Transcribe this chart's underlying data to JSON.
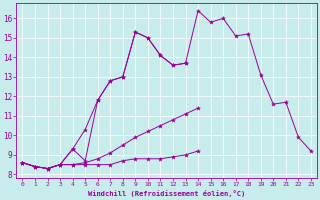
{
  "xlabel": "Windchill (Refroidissement éolien,°C)",
  "background_color": "#c8ecec",
  "line_color": "#990099",
  "xlim": [
    -0.5,
    23.5
  ],
  "ylim": [
    7.8,
    16.8
  ],
  "xticks": [
    0,
    1,
    2,
    3,
    4,
    5,
    6,
    7,
    8,
    9,
    10,
    11,
    12,
    13,
    14,
    15,
    16,
    17,
    18,
    19,
    20,
    21,
    22,
    23
  ],
  "yticks": [
    8,
    9,
    10,
    11,
    12,
    13,
    14,
    15,
    16
  ],
  "series": [
    {
      "x": [
        0,
        1,
        2,
        3,
        4,
        5,
        6,
        7,
        8,
        9,
        10,
        11,
        12,
        13
      ],
      "y": [
        8.6,
        8.4,
        8.3,
        8.5,
        9.3,
        8.7,
        11.8,
        12.8,
        13.0,
        15.3,
        15.0,
        14.1,
        13.6,
        13.7
      ]
    },
    {
      "x": [
        0,
        1,
        2,
        3,
        4,
        5,
        6,
        7,
        8,
        9,
        10,
        11,
        12,
        13,
        14
      ],
      "y": [
        8.6,
        8.4,
        8.3,
        8.5,
        8.5,
        8.5,
        8.5,
        8.5,
        8.7,
        8.8,
        8.8,
        8.8,
        8.9,
        9.0,
        9.2
      ]
    },
    {
      "x": [
        0,
        1,
        2,
        3,
        4,
        5,
        6,
        7,
        8,
        9,
        10,
        11,
        12,
        13,
        14
      ],
      "y": [
        8.6,
        8.4,
        8.3,
        8.5,
        8.5,
        8.6,
        8.8,
        9.1,
        9.5,
        9.9,
        10.2,
        10.5,
        10.8,
        11.1,
        11.4
      ]
    },
    {
      "x": [
        0,
        1,
        2,
        3,
        4,
        5,
        6,
        7,
        8,
        9,
        10,
        11,
        12,
        13,
        14,
        15,
        16,
        17,
        18,
        19,
        20,
        21,
        22,
        23
      ],
      "y": [
        8.6,
        8.4,
        8.3,
        8.5,
        9.3,
        10.3,
        11.8,
        12.8,
        13.0,
        15.3,
        15.0,
        14.1,
        13.6,
        13.7,
        16.4,
        15.8,
        16.0,
        15.1,
        15.2,
        13.1,
        11.6,
        11.7,
        9.9,
        9.2
      ]
    }
  ]
}
